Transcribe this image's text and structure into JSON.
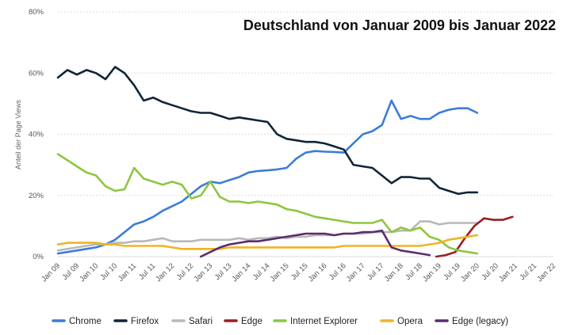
{
  "chart_data": {
    "type": "line",
    "title": "Deutschland von Januar 2009 bis Januar 2022",
    "ylabel": "Anteil der Page Views",
    "xlabel": "",
    "ylim": [
      0,
      80
    ],
    "y_ticks": [
      "0%",
      "20%",
      "40%",
      "60%",
      "80%"
    ],
    "x_ticks": [
      "Jan 09",
      "Jul 09",
      "Jan 10",
      "Jul 10",
      "Jan 11",
      "Jul 11",
      "Jan 12",
      "Jul 12",
      "Jan 13",
      "Jul 13",
      "Jan 14",
      "Jul 14",
      "Jan 15",
      "Jul 15",
      "Jan 16",
      "Jul 16",
      "Jan 17",
      "Jul 17",
      "Jan 18",
      "Jul 18",
      "Jan 19",
      "Jul 19",
      "Jan 20",
      "Jul 20",
      "Jan 21",
      "Jul 21",
      "Jan 22"
    ],
    "grid": true,
    "legend_position": "bottom",
    "series": [
      {
        "name": "Chrome",
        "color": "#3b7dd8",
        "start": 0,
        "values": [
          1,
          1.5,
          2,
          2.5,
          3,
          4,
          5.5,
          8,
          10.5,
          11.5,
          13,
          15,
          16.5,
          18,
          20.5,
          23,
          24.5,
          24,
          25,
          26,
          27.5,
          28,
          28.2,
          28.5,
          29,
          32,
          34,
          34.5,
          34.3,
          34.2,
          34,
          37,
          40,
          41,
          43,
          51,
          45,
          46,
          45,
          45,
          47,
          48,
          48.5,
          48.5,
          47
        ]
      },
      {
        "name": "Firefox",
        "color": "#0f2438",
        "start": 0,
        "values": [
          58.5,
          61,
          59.5,
          61,
          60,
          58,
          62,
          60,
          56,
          51,
          52,
          50.5,
          49.5,
          48.5,
          47.5,
          47,
          47,
          46,
          45,
          45.5,
          45,
          44.5,
          44,
          40,
          38.5,
          38,
          37.5,
          37.5,
          37,
          36,
          35,
          30,
          29.5,
          29,
          26.5,
          24,
          26,
          26,
          25.5,
          25.5,
          22.5,
          21.5,
          20.5,
          21,
          21
        ]
      },
      {
        "name": "Safari",
        "color": "#b8b8b8",
        "start": 0,
        "values": [
          2,
          2.5,
          3,
          3.5,
          4,
          4,
          4.5,
          4.5,
          5,
          5,
          5.5,
          6,
          5,
          5,
          5,
          5.5,
          5.5,
          5.5,
          5.5,
          6,
          5.5,
          6,
          6,
          6.5,
          6,
          6.5,
          6.5,
          7,
          7,
          7,
          7.5,
          7.5,
          7.5,
          8,
          8,
          8,
          8.5,
          8.5,
          11.5,
          11.5,
          10.5,
          11,
          11,
          11,
          11
        ]
      },
      {
        "name": "Edge",
        "color": "#9b1d20",
        "start": 39.7,
        "values": [
          0,
          0.5,
          1.5,
          6,
          10,
          12.5,
          12,
          12,
          13
        ]
      },
      {
        "name": "Internet Explorer",
        "color": "#8dc63f",
        "start": 0,
        "values": [
          33.5,
          31.5,
          29.5,
          27.5,
          26.5,
          23,
          21.5,
          22,
          29,
          25.5,
          24.5,
          23.5,
          24.5,
          23.5,
          19,
          20,
          24.5,
          19.5,
          18,
          18,
          17.5,
          18,
          17.5,
          17,
          15.5,
          15,
          14,
          13,
          12.5,
          12,
          11.5,
          11,
          11,
          11,
          12,
          8,
          9.5,
          8.5,
          9.5,
          6.5,
          5.5,
          3,
          2,
          1.5,
          1
        ]
      },
      {
        "name": "Opera",
        "color": "#f0b323",
        "start": 0,
        "values": [
          4,
          4.5,
          4.5,
          4.5,
          4.5,
          4,
          4,
          3.5,
          3.5,
          3.5,
          3.5,
          3.5,
          3,
          2.5,
          2.5,
          2.5,
          2.5,
          2.5,
          3,
          3,
          3,
          3,
          3,
          3,
          3,
          3,
          3,
          3,
          3,
          3,
          3.5,
          3.5,
          3.5,
          3.5,
          3.5,
          3.5,
          3.5,
          3.5,
          3.5,
          4,
          4.5,
          5.5,
          6,
          6.5,
          7
        ]
      },
      {
        "name": "Edge (legacy)",
        "color": "#5b2c6f",
        "start": 15,
        "values": [
          0,
          1.5,
          3,
          4,
          4.5,
          5,
          5,
          5.5,
          6,
          6.5,
          7,
          7.5,
          7.5,
          7.5,
          7,
          7.5,
          7.5,
          8,
          8,
          8.5,
          3,
          2,
          1.5,
          1,
          0.5
        ]
      }
    ]
  }
}
